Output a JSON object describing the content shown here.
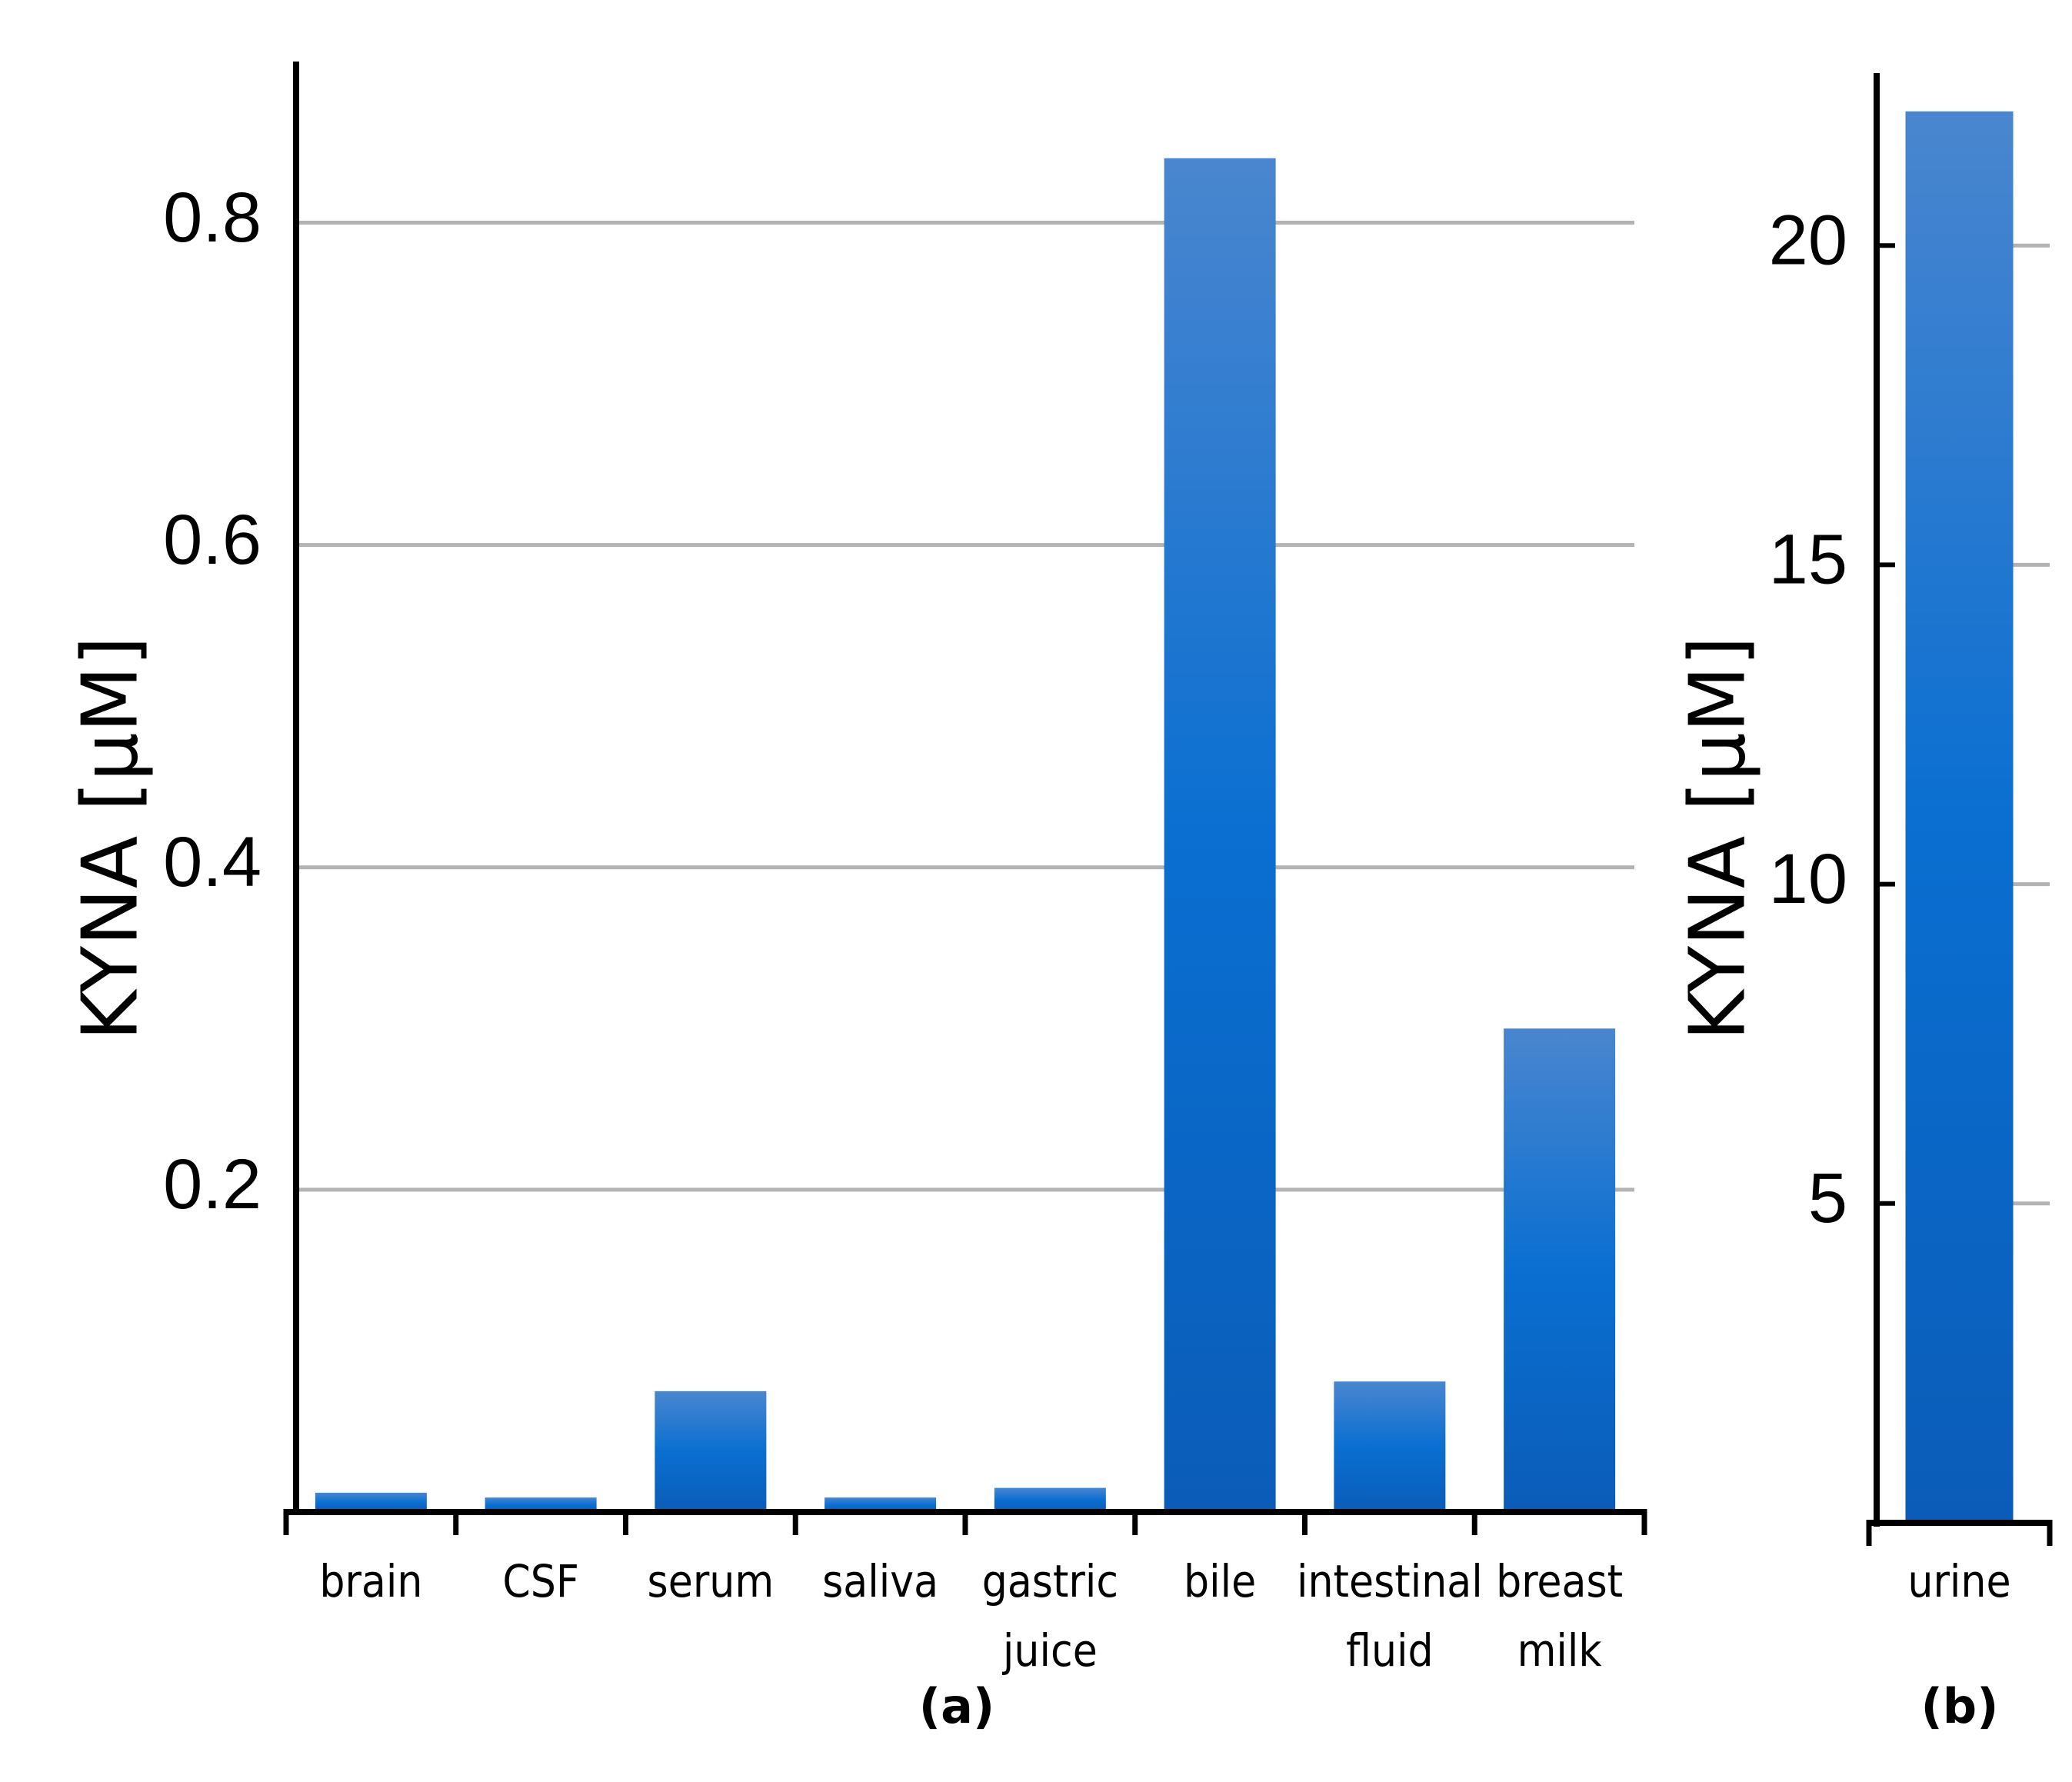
{
  "chart_data": [
    {
      "type": "bar",
      "panel_label": "(a)",
      "ylabel": "KYNA [µM]",
      "ylim": [
        0,
        0.9
      ],
      "yticks": [
        0.2,
        0.4,
        0.6,
        0.8
      ],
      "ytick_labels": [
        "0.2",
        "0.4",
        "0.6",
        "0.8"
      ],
      "grid": true,
      "categories": [
        [
          "brain"
        ],
        [
          "CSF"
        ],
        [
          "serum"
        ],
        [
          "saliva"
        ],
        [
          "gastric",
          "juice"
        ],
        [
          "bile"
        ],
        [
          "intestinal",
          "fluid"
        ],
        [
          "breast",
          "milk"
        ]
      ],
      "values": [
        0.012,
        0.009,
        0.075,
        0.009,
        0.015,
        0.84,
        0.081,
        0.3
      ],
      "bar_color_top": "#4a86cf",
      "bar_color_mid": "#0a6fd1",
      "bar_color_bottom": "#0b5cb8"
    },
    {
      "type": "bar",
      "panel_label": "(b)",
      "ylabel": "KYNA [µM]",
      "ylim": [
        0,
        22.7
      ],
      "yticks": [
        5,
        10,
        15,
        20
      ],
      "ytick_labels": [
        "5",
        "10",
        "15",
        "20"
      ],
      "grid": false,
      "categories": [
        [
          "urine"
        ]
      ],
      "values": [
        22.1
      ],
      "bar_color_top": "#4a86cf",
      "bar_color_mid": "#0a6fd1",
      "bar_color_bottom": "#0b5cb8"
    }
  ]
}
